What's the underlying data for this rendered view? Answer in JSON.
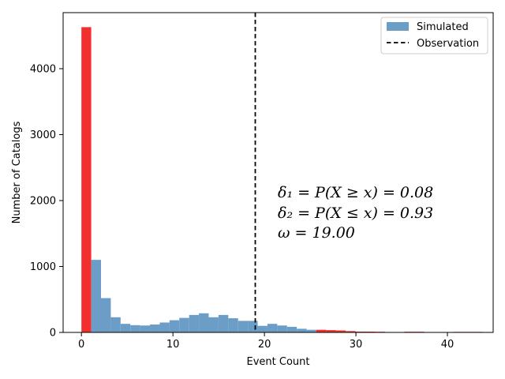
{
  "chart_data": {
    "type": "bar",
    "title": "",
    "xlabel": "Event Count",
    "ylabel": "Number of Catalogs",
    "xlim": [
      -2,
      45
    ],
    "ylim": [
      0,
      4850
    ],
    "xticks": [
      0,
      10,
      20,
      30,
      40
    ],
    "yticks": [
      0,
      1000,
      2000,
      3000,
      4000
    ],
    "bin_width": 1.07,
    "colors": {
      "simulated": "#6b9dc7",
      "rejected": "#f22f2f",
      "observation": "#000000"
    },
    "series": [
      {
        "name": "Simulated",
        "bins": [
          {
            "x": 0.0,
            "count": 4630,
            "rejected": true
          },
          {
            "x": 1.07,
            "count": 1100,
            "rejected": false
          },
          {
            "x": 2.14,
            "count": 520,
            "rejected": false
          },
          {
            "x": 3.21,
            "count": 230,
            "rejected": false
          },
          {
            "x": 4.28,
            "count": 130,
            "rejected": false
          },
          {
            "x": 5.35,
            "count": 110,
            "rejected": false
          },
          {
            "x": 6.42,
            "count": 105,
            "rejected": false
          },
          {
            "x": 7.49,
            "count": 120,
            "rejected": false
          },
          {
            "x": 8.56,
            "count": 150,
            "rejected": false
          },
          {
            "x": 9.63,
            "count": 185,
            "rejected": false
          },
          {
            "x": 10.7,
            "count": 220,
            "rejected": false
          },
          {
            "x": 11.77,
            "count": 265,
            "rejected": false
          },
          {
            "x": 12.84,
            "count": 290,
            "rejected": false
          },
          {
            "x": 13.91,
            "count": 230,
            "rejected": false
          },
          {
            "x": 14.98,
            "count": 265,
            "rejected": false
          },
          {
            "x": 16.05,
            "count": 215,
            "rejected": false
          },
          {
            "x": 17.12,
            "count": 175,
            "rejected": false
          },
          {
            "x": 18.19,
            "count": 175,
            "rejected": false
          },
          {
            "x": 19.26,
            "count": 100,
            "rejected": false
          },
          {
            "x": 20.33,
            "count": 130,
            "rejected": false
          },
          {
            "x": 21.4,
            "count": 105,
            "rejected": false
          },
          {
            "x": 22.47,
            "count": 85,
            "rejected": false
          },
          {
            "x": 23.54,
            "count": 55,
            "rejected": false
          },
          {
            "x": 24.61,
            "count": 40,
            "rejected": false
          },
          {
            "x": 25.68,
            "count": 40,
            "rejected": true
          },
          {
            "x": 26.75,
            "count": 35,
            "rejected": true
          },
          {
            "x": 27.82,
            "count": 30,
            "rejected": true
          },
          {
            "x": 28.89,
            "count": 20,
            "rejected": true
          },
          {
            "x": 29.96,
            "count": 12,
            "rejected": true
          },
          {
            "x": 31.03,
            "count": 12,
            "rejected": true
          },
          {
            "x": 32.1,
            "count": 10,
            "rejected": true
          },
          {
            "x": 33.17,
            "count": 6,
            "rejected": true
          },
          {
            "x": 34.24,
            "count": 5,
            "rejected": true
          },
          {
            "x": 35.31,
            "count": 10,
            "rejected": true
          },
          {
            "x": 36.38,
            "count": 10,
            "rejected": true
          },
          {
            "x": 37.45,
            "count": 4,
            "rejected": true
          },
          {
            "x": 38.52,
            "count": 3,
            "rejected": true
          },
          {
            "x": 39.59,
            "count": 3,
            "rejected": true
          },
          {
            "x": 40.66,
            "count": 8,
            "rejected": true
          },
          {
            "x": 41.73,
            "count": 8,
            "rejected": true
          },
          {
            "x": 42.8,
            "count": 8,
            "rejected": true
          },
          {
            "x": 43.87,
            "count": 6,
            "rejected": true
          }
        ]
      }
    ],
    "observation": {
      "name": "Observation",
      "x": 19.0
    },
    "legend": {
      "placement": "top-right",
      "entries": [
        "Simulated",
        "Observation"
      ]
    },
    "annotations": [
      "δ₁ = P(X ≥ x) = 0.08",
      "δ₂ = P(X ≤ x) = 0.93",
      "ω = 19.00"
    ],
    "grid": false
  }
}
